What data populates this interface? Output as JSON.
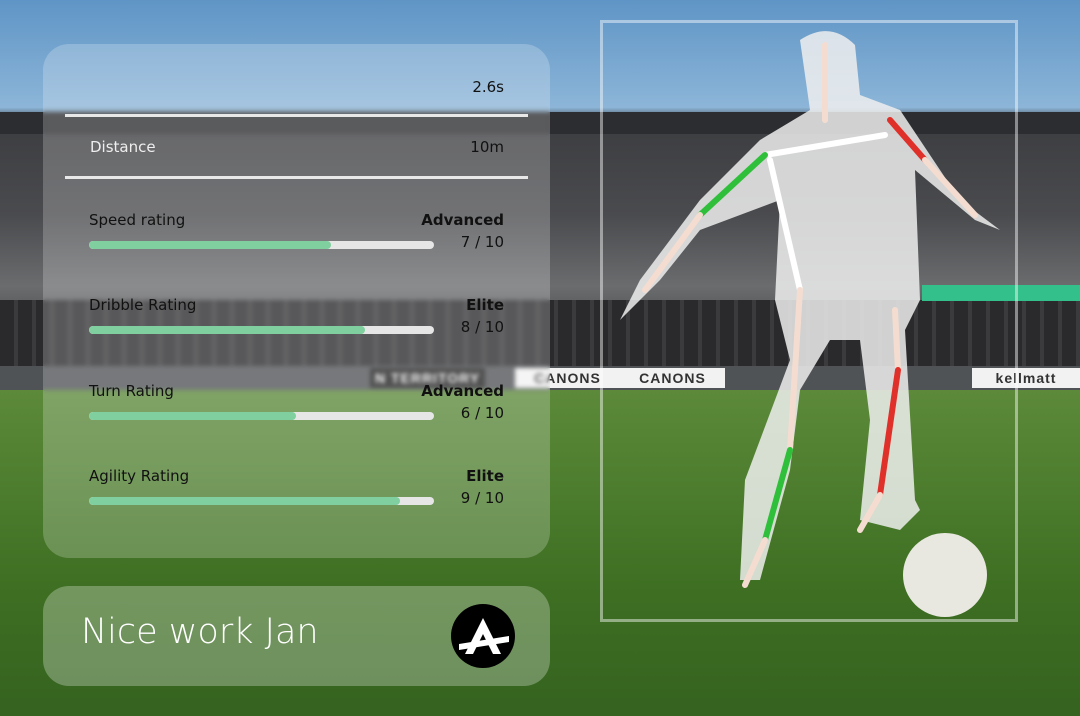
{
  "stats": [
    {
      "label": "",
      "value": "2.6s"
    },
    {
      "label": "Distance",
      "value": "10m"
    }
  ],
  "ratings": [
    {
      "label": "Speed rating",
      "level": "Advanced",
      "score": "7 / 10",
      "fraction": 0.7
    },
    {
      "label": "Dribble Rating",
      "level": "Elite",
      "score": "8 / 10",
      "fraction": 0.8
    },
    {
      "label": "Turn Rating",
      "level": "Advanced",
      "score": "6 / 10",
      "fraction": 0.6
    },
    {
      "label": "Agility Rating",
      "level": "Elite",
      "score": "9 / 10",
      "fraction": 0.9
    }
  ],
  "banner": {
    "message": "Nice work Jan",
    "logo_icon": "brand-a-logo"
  },
  "boards": [
    "N TERRITORY",
    "CANONS",
    "CANONS",
    "kellmatt"
  ],
  "colors": {
    "bar_fill": "#7fcf9f",
    "bar_track": "#e6e6e6",
    "skeleton_left": "#2fbf3a",
    "skeleton_right": "#e0302a"
  }
}
